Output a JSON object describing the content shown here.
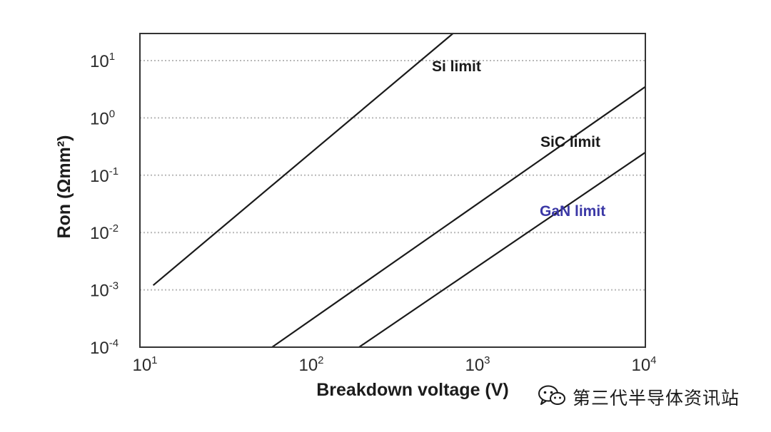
{
  "chart_data": {
    "type": "line",
    "title": "",
    "xlabel": "Breakdown voltage (V)",
    "ylabel": "Ron (Ωmm²)",
    "x_scale": "log",
    "y_scale": "log",
    "xlim": [
      10,
      10000
    ],
    "ylim": [
      0.0001,
      30
    ],
    "grid": "horizontal dotted at each y decade",
    "x_ticks": [
      {
        "base": "10",
        "exp": "1",
        "value": 10
      },
      {
        "base": "10",
        "exp": "2",
        "value": 100
      },
      {
        "base": "10",
        "exp": "3",
        "value": 1000
      },
      {
        "base": "10",
        "exp": "4",
        "value": 10000
      }
    ],
    "y_ticks": [
      {
        "base": "10",
        "exp": "1",
        "value": 10
      },
      {
        "base": "10",
        "exp": "0",
        "value": 1
      },
      {
        "base": "10",
        "exp": "-1",
        "value": 0.1
      },
      {
        "base": "10",
        "exp": "-2",
        "value": 0.01
      },
      {
        "base": "10",
        "exp": "-3",
        "value": 0.001
      },
      {
        "base": "10",
        "exp": "-4",
        "value": 0.0001
      }
    ],
    "series": [
      {
        "name": "Si limit",
        "color": "#1a1a1a",
        "x": [
          11,
          700
        ],
        "y": [
          0.0012,
          30
        ]
      },
      {
        "name": "SiC limit",
        "color": "#1a1a1a",
        "x": [
          57,
          10000
        ],
        "y": [
          0.0001,
          3.5
        ]
      },
      {
        "name": "GaN limit",
        "color": "#1a1a1a",
        "label_color": "#3b38a6",
        "x": [
          190,
          10000
        ],
        "y": [
          0.0001,
          0.25
        ]
      }
    ]
  },
  "watermark": {
    "text": "第三代半导体资讯站",
    "icon": "wechat-icon",
    "color": "#1a1a1a"
  }
}
